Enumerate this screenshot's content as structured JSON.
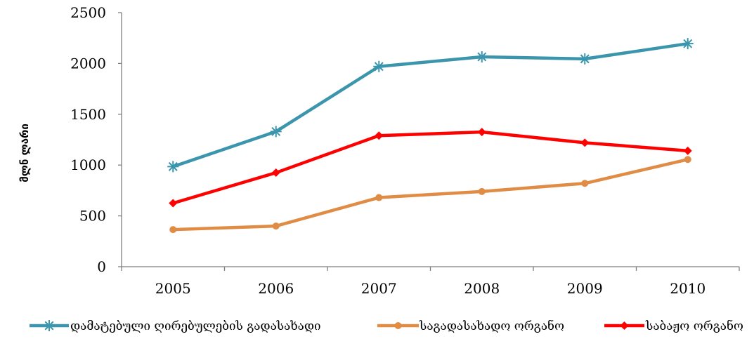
{
  "chart_data": {
    "type": "line",
    "title": "",
    "xlabel": "",
    "ylabel": "მლნ ლარი",
    "categories": [
      "2005",
      "2006",
      "2007",
      "2008",
      "2009",
      "2010"
    ],
    "ylim": [
      0,
      2500
    ],
    "yticks": [
      0,
      500,
      1000,
      1500,
      2000,
      2500
    ],
    "grid": false,
    "legend_position": "bottom",
    "series": [
      {
        "name": "დამატებული ღირებულების  გადასახადი",
        "values": [
          985,
          1330,
          1970,
          2065,
          2045,
          2195
        ],
        "color": "#3a95ad",
        "marker": "asterisk"
      },
      {
        "name": "საგადასახადო ორგანო",
        "values": [
          365,
          400,
          680,
          740,
          820,
          1055
        ],
        "color": "#e08c45",
        "marker": "circle"
      },
      {
        "name": "საბაჟო ორგანო",
        "values": [
          625,
          925,
          1290,
          1325,
          1220,
          1140
        ],
        "color": "#ff0000",
        "marker": "diamond"
      }
    ]
  }
}
